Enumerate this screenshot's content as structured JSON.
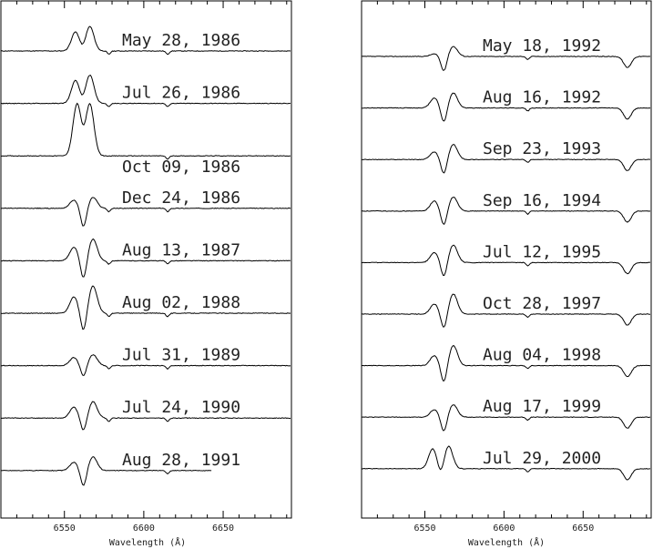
{
  "chart_data": [
    {
      "type": "line",
      "panel": "left",
      "xlabel": "Wavelength (Å)",
      "xlim": [
        6510,
        6693
      ],
      "xticks": [
        6550,
        6600,
        6650
      ],
      "tick_labels": [
        "6550",
        "6600",
        "6650"
      ],
      "series": [
        {
          "name": "May 28, 1986",
          "profile": "pcygni_emission",
          "emission_peaks": [
            6557,
            6566
          ],
          "peak_strength": [
            0.35,
            0.45
          ],
          "dip_depth": 0.05,
          "absorption_dips": [
            6578,
            6615
          ]
        },
        {
          "name": "Jul 26, 1986",
          "profile": "pcygni_emission",
          "emission_peaks": [
            6557,
            6566
          ],
          "peak_strength": [
            0.42,
            0.52
          ],
          "dip_depth": 0.05,
          "absorption_dips": [
            6578,
            6615
          ]
        },
        {
          "name": "Oct 09, 1986",
          "profile": "pcygni_emission",
          "emission_peaks": [
            6558,
            6566
          ],
          "peak_strength": [
            0.95,
            0.95
          ],
          "dip_depth": 0.02,
          "absorption_dips": [
            6615
          ]
        },
        {
          "name": "Dec 24, 1986",
          "profile": "inverse_pcygni",
          "emission_peaks": [
            6556,
            6568
          ],
          "peak_strength": [
            0.15,
            0.2
          ],
          "dip_depth": 0.35,
          "absorption_dips": [
            6578,
            6615
          ]
        },
        {
          "name": "Aug 13, 1987",
          "profile": "inverse_pcygni",
          "emission_peaks": [
            6556,
            6568
          ],
          "peak_strength": [
            0.25,
            0.4
          ],
          "dip_depth": 0.35,
          "absorption_dips": [
            6578,
            6615
          ]
        },
        {
          "name": "Aug 02, 1988",
          "profile": "inverse_pcygni",
          "emission_peaks": [
            6556,
            6568
          ],
          "peak_strength": [
            0.3,
            0.5
          ],
          "dip_depth": 0.35,
          "absorption_dips": [
            6578,
            6615
          ]
        },
        {
          "name": "Jul 31, 1989",
          "profile": "inverse_pcygni",
          "emission_peaks": [
            6556,
            6568
          ],
          "peak_strength": [
            0.15,
            0.2
          ],
          "dip_depth": 0.2,
          "absorption_dips": [
            6578,
            6615
          ]
        },
        {
          "name": "Jul 24, 1990",
          "profile": "inverse_pcygni",
          "emission_peaks": [
            6556,
            6568
          ],
          "peak_strength": [
            0.2,
            0.3
          ],
          "dip_depth": 0.25,
          "absorption_dips": [
            6578,
            6615
          ]
        },
        {
          "name": "Aug 28, 1991",
          "profile": "inverse_pcygni",
          "emission_peaks": [
            6556,
            6568
          ],
          "peak_strength": [
            0.15,
            0.25
          ],
          "dip_depth": 0.3,
          "absorption_dips": [
            6615
          ]
        }
      ]
    },
    {
      "type": "line",
      "panel": "right",
      "xlabel": "Wavelength (Å)",
      "xlim": [
        6510,
        6693
      ],
      "xticks": [
        6550,
        6600,
        6650
      ],
      "tick_labels": [
        "6550",
        "6600",
        "6650"
      ],
      "series": [
        {
          "name": "May 18, 1992",
          "profile": "inverse_pcygni",
          "emission_peaks": [
            6556,
            6568
          ],
          "peak_strength": [
            0.05,
            0.2
          ],
          "dip_depth": 0.3,
          "absorption_dips": [
            6678,
            6615
          ]
        },
        {
          "name": "Aug 16, 1992",
          "profile": "inverse_pcygni",
          "emission_peaks": [
            6556,
            6568
          ],
          "peak_strength": [
            0.2,
            0.3
          ],
          "dip_depth": 0.3,
          "absorption_dips": [
            6678,
            6615
          ]
        },
        {
          "name": "Sep 23, 1993",
          "profile": "inverse_pcygni",
          "emission_peaks": [
            6556,
            6568
          ],
          "peak_strength": [
            0.15,
            0.3
          ],
          "dip_depth": 0.3,
          "absorption_dips": [
            6678,
            6615
          ]
        },
        {
          "name": "Sep 16, 1994",
          "profile": "inverse_pcygni",
          "emission_peaks": [
            6556,
            6568
          ],
          "peak_strength": [
            0.2,
            0.28
          ],
          "dip_depth": 0.3,
          "absorption_dips": [
            6678,
            6615
          ]
        },
        {
          "name": "Jul 12, 1995",
          "profile": "inverse_pcygni",
          "emission_peaks": [
            6556,
            6568
          ],
          "peak_strength": [
            0.2,
            0.35
          ],
          "dip_depth": 0.3,
          "absorption_dips": [
            6678,
            6615
          ]
        },
        {
          "name": "Oct 28, 1997",
          "profile": "inverse_pcygni",
          "emission_peaks": [
            6556,
            6568
          ],
          "peak_strength": [
            0.2,
            0.4
          ],
          "dip_depth": 0.3,
          "absorption_dips": [
            6678,
            6615
          ]
        },
        {
          "name": "Aug 04, 1998",
          "profile": "inverse_pcygni",
          "emission_peaks": [
            6556,
            6568
          ],
          "peak_strength": [
            0.2,
            0.4
          ],
          "dip_depth": 0.35,
          "absorption_dips": [
            6678,
            6615
          ]
        },
        {
          "name": "Aug 17, 1999",
          "profile": "inverse_pcygni",
          "emission_peaks": [
            6556,
            6568
          ],
          "peak_strength": [
            0.15,
            0.25
          ],
          "dip_depth": 0.3,
          "absorption_dips": [
            6678,
            6615
          ]
        },
        {
          "name": "Jul 29, 2000",
          "profile": "inverse_pcygni",
          "emission_peaks": [
            6555,
            6565
          ],
          "peak_strength": [
            0.4,
            0.45
          ],
          "dip_depth": 0.15,
          "absorption_dips": [
            6678,
            6615
          ]
        }
      ]
    }
  ]
}
